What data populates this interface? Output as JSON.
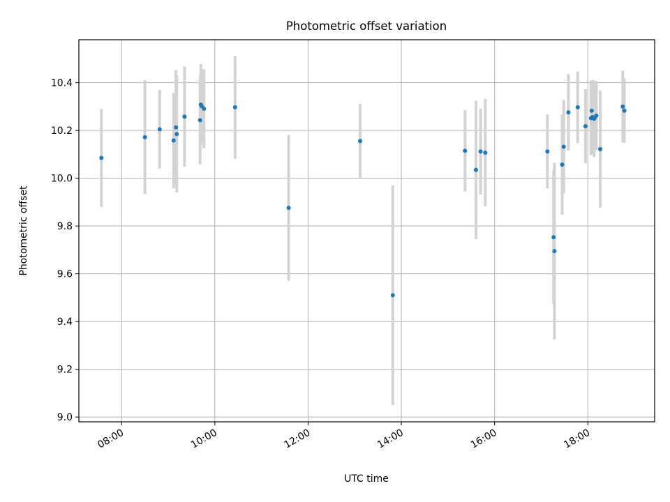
{
  "chart_data": {
    "type": "scatter",
    "title": "Photometric offset variation",
    "xlabel": "UTC time",
    "ylabel": "Photometric offset",
    "x_unit": "UTC time (HH:MM)",
    "xlim": [
      "07:05",
      "19:26"
    ],
    "ylim": [
      8.98,
      10.58
    ],
    "x_ticks": [
      "08:00",
      "10:00",
      "12:00",
      "14:00",
      "16:00",
      "18:00"
    ],
    "y_ticks": [
      "9.0",
      "9.2",
      "9.4",
      "9.6",
      "9.8",
      "10.0",
      "10.2",
      "10.4"
    ],
    "grid": true,
    "series": [
      {
        "marker_color": "#1f77b4",
        "errorbar_color": "#d3d3d3",
        "points": [
          {
            "t": "07:34",
            "y": 10.085,
            "err": 0.205
          },
          {
            "t": "08:30",
            "y": 10.172,
            "err": 0.238
          },
          {
            "t": "08:49",
            "y": 10.205,
            "err": 0.165
          },
          {
            "t": "09:07",
            "y": 10.158,
            "err": 0.2
          },
          {
            "t": "09:10",
            "y": 10.213,
            "err": 0.24
          },
          {
            "t": "09:11",
            "y": 10.185,
            "err": 0.245
          },
          {
            "t": "09:21",
            "y": 10.258,
            "err": 0.21
          },
          {
            "t": "09:41",
            "y": 10.243,
            "err": 0.185
          },
          {
            "t": "09:42",
            "y": 10.308,
            "err": 0.17
          },
          {
            "t": "09:43",
            "y": 10.302,
            "err": 0.155
          },
          {
            "t": "09:46",
            "y": 10.291,
            "err": 0.165
          },
          {
            "t": "10:26",
            "y": 10.297,
            "err": 0.215
          },
          {
            "t": "11:35",
            "y": 9.876,
            "err": 0.305
          },
          {
            "t": "13:07",
            "y": 10.156,
            "err": 0.155
          },
          {
            "t": "13:49",
            "y": 9.51,
            "err": 0.46
          },
          {
            "t": "15:22",
            "y": 10.115,
            "err": 0.17
          },
          {
            "t": "15:36",
            "y": 10.035,
            "err": 0.29
          },
          {
            "t": "15:42",
            "y": 10.112,
            "err": 0.18
          },
          {
            "t": "15:48",
            "y": 10.107,
            "err": 0.225
          },
          {
            "t": "17:08",
            "y": 10.112,
            "err": 0.155
          },
          {
            "t": "17:16",
            "y": 9.753,
            "err": 0.28
          },
          {
            "t": "17:17",
            "y": 9.695,
            "err": 0.37
          },
          {
            "t": "17:27",
            "y": 10.057,
            "err": 0.21
          },
          {
            "t": "17:29",
            "y": 10.132,
            "err": 0.195
          },
          {
            "t": "17:35",
            "y": 10.276,
            "err": 0.16
          },
          {
            "t": "17:47",
            "y": 10.297,
            "err": 0.15
          },
          {
            "t": "17:57",
            "y": 10.218,
            "err": 0.155
          },
          {
            "t": "18:04",
            "y": 10.252,
            "err": 0.155
          },
          {
            "t": "18:05",
            "y": 10.283,
            "err": 0.125
          },
          {
            "t": "18:06",
            "y": 10.256,
            "err": 0.155
          },
          {
            "t": "18:08",
            "y": 10.249,
            "err": 0.16
          },
          {
            "t": "18:09",
            "y": 10.254,
            "err": 0.13
          },
          {
            "t": "18:11",
            "y": 10.262,
            "err": 0.145
          },
          {
            "t": "18:16",
            "y": 10.122,
            "err": 0.245
          },
          {
            "t": "18:45",
            "y": 10.3,
            "err": 0.15
          },
          {
            "t": "18:47",
            "y": 10.283,
            "err": 0.135
          }
        ]
      }
    ]
  }
}
